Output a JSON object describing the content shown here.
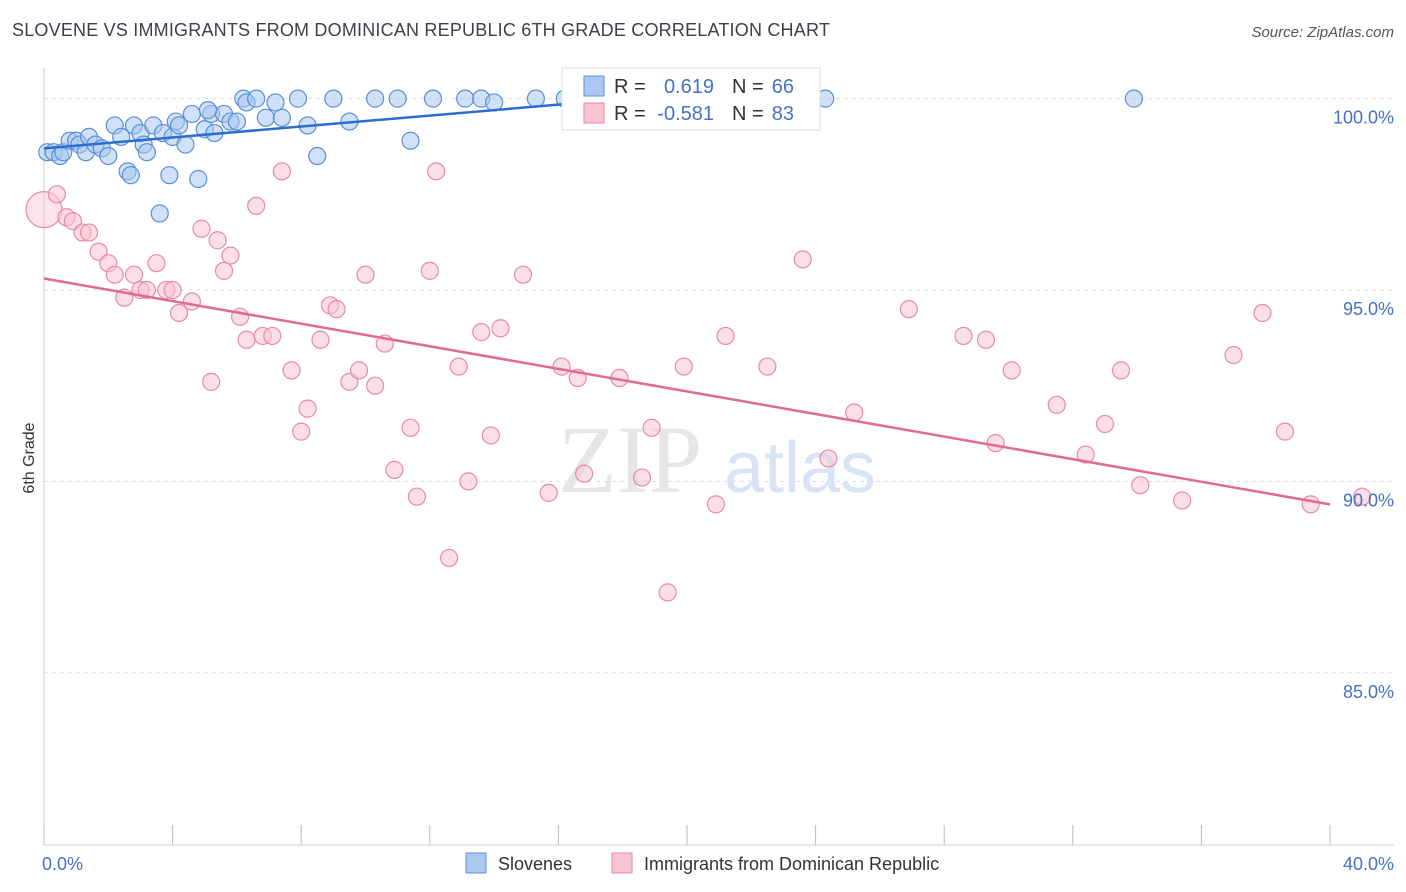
{
  "header": {
    "title": "SLOVENE VS IMMIGRANTS FROM DOMINICAN REPUBLIC 6TH GRADE CORRELATION CHART",
    "source": "Source: ZipAtlas.com"
  },
  "watermark": {
    "zip": "ZIP",
    "atlas": "atlas"
  },
  "colors": {
    "blue_fill": "#aac8f0",
    "blue_stroke": "#5a8fd6",
    "blue_line": "#2a6fd0",
    "pink_fill": "#f8c4d2",
    "pink_stroke": "#e88aa6",
    "pink_line": "#e06a93",
    "axis_label": "#4472c4",
    "grid": "#dddddd"
  },
  "legend_stats": {
    "blue": {
      "r_label": "R =",
      "r_value": "0.619",
      "n_label": "N =",
      "n_value": "66"
    },
    "pink": {
      "r_label": "R =",
      "r_value": "-0.581",
      "n_label": "N =",
      "n_value": "83"
    }
  },
  "chart_data": {
    "type": "scatter",
    "ylabel": "6th Grade",
    "xlim": [
      0,
      40
    ],
    "ylim": [
      80.5,
      100.8
    ],
    "x_tick_labels": {
      "min": "0.0%",
      "max": "40.0%"
    },
    "y_ticks": [
      {
        "value": 100,
        "label": "100.0%"
      },
      {
        "value": 95,
        "label": "95.0%"
      },
      {
        "value": 90,
        "label": "90.0%"
      },
      {
        "value": 85,
        "label": "85.0%"
      }
    ],
    "grid": true,
    "legend_position": "bottom",
    "series": [
      {
        "name": "Slovenes",
        "color": "blue",
        "trend": [
          [
            0.0,
            98.7
          ],
          [
            21.0,
            100.2
          ]
        ],
        "points": [
          [
            0.1,
            98.6
          ],
          [
            0.3,
            98.6
          ],
          [
            0.5,
            98.5
          ],
          [
            0.6,
            98.6
          ],
          [
            0.8,
            98.9
          ],
          [
            1.0,
            98.9
          ],
          [
            1.1,
            98.8
          ],
          [
            1.3,
            98.6
          ],
          [
            1.4,
            99.0
          ],
          [
            1.6,
            98.8
          ],
          [
            1.8,
            98.7
          ],
          [
            2.0,
            98.5
          ],
          [
            2.2,
            99.3
          ],
          [
            2.4,
            99.0
          ],
          [
            2.6,
            98.1
          ],
          [
            2.7,
            98.0
          ],
          [
            2.8,
            99.3
          ],
          [
            3.0,
            99.1
          ],
          [
            3.1,
            98.8
          ],
          [
            3.2,
            98.6
          ],
          [
            3.4,
            99.3
          ],
          [
            3.6,
            97.0
          ],
          [
            3.7,
            99.1
          ],
          [
            3.9,
            98.0
          ],
          [
            4.0,
            99.0
          ],
          [
            4.1,
            99.4
          ],
          [
            4.2,
            99.3
          ],
          [
            4.4,
            98.8
          ],
          [
            4.6,
            99.6
          ],
          [
            4.8,
            97.9
          ],
          [
            5.0,
            99.2
          ],
          [
            5.2,
            99.6
          ],
          [
            5.3,
            99.1
          ],
          [
            5.6,
            99.6
          ],
          [
            5.8,
            99.4
          ],
          [
            6.0,
            99.4
          ],
          [
            6.2,
            100.0
          ],
          [
            6.3,
            99.9
          ],
          [
            6.6,
            100.0
          ],
          [
            6.9,
            99.5
          ],
          [
            7.2,
            99.9
          ],
          [
            7.4,
            99.5
          ],
          [
            7.9,
            100.0
          ],
          [
            8.2,
            99.3
          ],
          [
            8.5,
            98.5
          ],
          [
            9.0,
            100.0
          ],
          [
            9.5,
            99.4
          ],
          [
            10.3,
            100.0
          ],
          [
            11.0,
            100.0
          ],
          [
            11.4,
            98.9
          ],
          [
            12.1,
            100.0
          ],
          [
            13.1,
            100.0
          ],
          [
            13.6,
            100.0
          ],
          [
            14.0,
            99.9
          ],
          [
            15.3,
            100.0
          ],
          [
            16.2,
            100.0
          ],
          [
            17.2,
            100.0
          ],
          [
            18.0,
            100.0
          ],
          [
            19.0,
            100.0
          ],
          [
            20.0,
            100.0
          ],
          [
            21.0,
            100.0
          ],
          [
            22.0,
            100.0
          ],
          [
            23.0,
            100.0
          ],
          [
            24.3,
            100.0
          ],
          [
            33.9,
            100.0
          ],
          [
            5.1,
            99.7
          ]
        ]
      },
      {
        "name": "Immigrants from Dominican Republic",
        "color": "pink",
        "trend": [
          [
            0.0,
            95.3
          ],
          [
            40.0,
            89.4
          ]
        ],
        "points": [
          [
            0.0,
            97.1
          ],
          [
            0.4,
            97.5
          ],
          [
            0.7,
            96.9
          ],
          [
            0.9,
            96.8
          ],
          [
            1.2,
            96.5
          ],
          [
            1.4,
            96.5
          ],
          [
            1.7,
            96.0
          ],
          [
            2.0,
            95.7
          ],
          [
            2.2,
            95.4
          ],
          [
            2.5,
            94.8
          ],
          [
            2.8,
            95.4
          ],
          [
            3.0,
            95.0
          ],
          [
            3.2,
            95.0
          ],
          [
            3.5,
            95.7
          ],
          [
            3.8,
            95.0
          ],
          [
            4.0,
            95.0
          ],
          [
            4.2,
            94.4
          ],
          [
            4.6,
            94.7
          ],
          [
            4.9,
            96.6
          ],
          [
            5.2,
            92.6
          ],
          [
            5.4,
            96.3
          ],
          [
            5.6,
            95.5
          ],
          [
            5.8,
            95.9
          ],
          [
            6.1,
            94.3
          ],
          [
            6.3,
            93.7
          ],
          [
            6.6,
            97.2
          ],
          [
            6.8,
            93.8
          ],
          [
            7.1,
            93.8
          ],
          [
            7.4,
            98.1
          ],
          [
            7.7,
            92.9
          ],
          [
            8.0,
            91.3
          ],
          [
            8.2,
            91.9
          ],
          [
            8.6,
            93.7
          ],
          [
            8.9,
            94.6
          ],
          [
            9.1,
            94.5
          ],
          [
            9.5,
            92.6
          ],
          [
            9.8,
            92.9
          ],
          [
            10.0,
            95.4
          ],
          [
            10.3,
            92.5
          ],
          [
            10.6,
            93.6
          ],
          [
            10.9,
            90.3
          ],
          [
            11.4,
            91.4
          ],
          [
            11.6,
            89.6
          ],
          [
            12.0,
            95.5
          ],
          [
            12.2,
            98.1
          ],
          [
            12.6,
            88.0
          ],
          [
            12.9,
            93.0
          ],
          [
            13.2,
            90.0
          ],
          [
            13.6,
            93.9
          ],
          [
            13.9,
            91.2
          ],
          [
            14.2,
            94.0
          ],
          [
            14.9,
            95.4
          ],
          [
            15.7,
            89.7
          ],
          [
            16.1,
            93.0
          ],
          [
            16.6,
            92.7
          ],
          [
            16.8,
            90.2
          ],
          [
            17.9,
            92.7
          ],
          [
            18.6,
            90.1
          ],
          [
            18.9,
            91.4
          ],
          [
            19.4,
            87.1
          ],
          [
            19.9,
            93.0
          ],
          [
            20.9,
            89.4
          ],
          [
            21.2,
            93.8
          ],
          [
            22.5,
            93.0
          ],
          [
            23.6,
            95.8
          ],
          [
            24.4,
            90.6
          ],
          [
            25.2,
            91.8
          ],
          [
            26.9,
            94.5
          ],
          [
            28.6,
            93.8
          ],
          [
            29.3,
            93.7
          ],
          [
            29.6,
            91.0
          ],
          [
            30.1,
            92.9
          ],
          [
            31.5,
            92.0
          ],
          [
            32.4,
            90.7
          ],
          [
            33.0,
            91.5
          ],
          [
            33.5,
            92.9
          ],
          [
            34.1,
            89.9
          ],
          [
            35.4,
            89.5
          ],
          [
            37.0,
            93.3
          ],
          [
            37.9,
            94.4
          ],
          [
            38.6,
            91.3
          ],
          [
            39.4,
            89.4
          ],
          [
            41.0,
            89.6
          ]
        ]
      }
    ]
  }
}
